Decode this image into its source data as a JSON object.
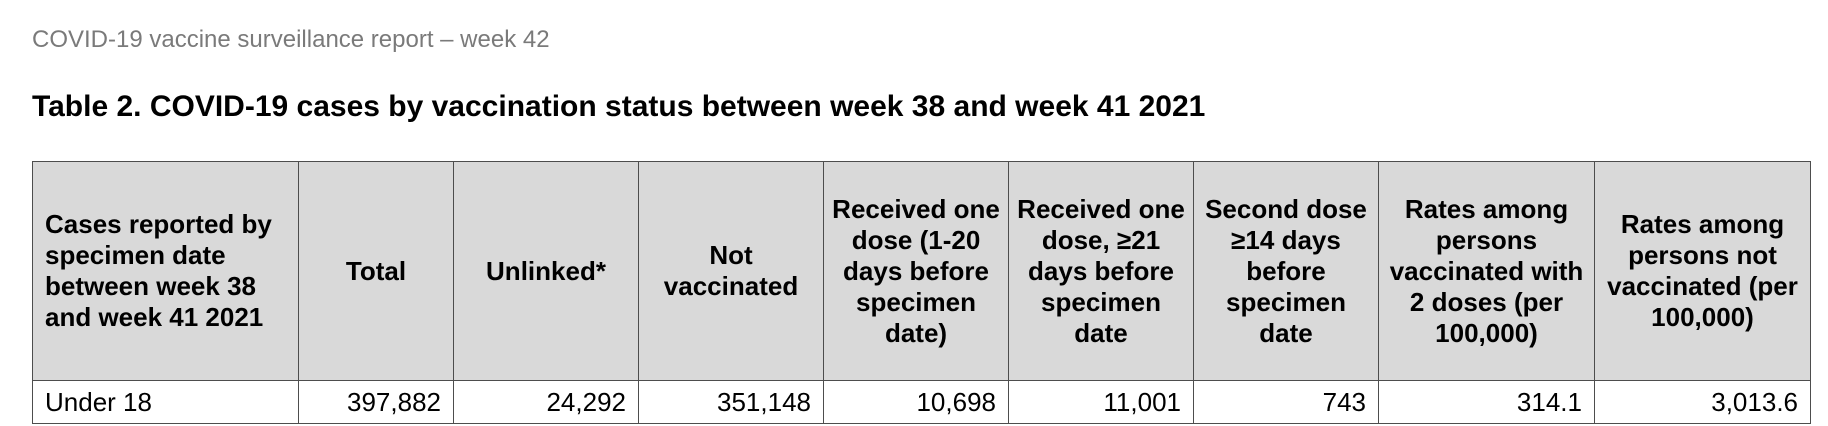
{
  "header": {
    "running_title": "COVID-19 vaccine surveillance report – week 42"
  },
  "table": {
    "title": "Table 2. COVID-19 cases by vaccination status between week 38 and week 41 2021",
    "columns": [
      "Cases reported by specimen date between week 38 and week 41 2021",
      "Total",
      "Unlinked*",
      "Not vaccinated",
      "Received one dose (1-20 days before specimen date)",
      "Received one dose, ≥21 days before specimen date",
      "Second dose ≥14 days before specimen date",
      "Rates among persons vaccinated with 2 doses (per 100,000)",
      "Rates among persons not vaccinated (per 100,000)"
    ],
    "rows": [
      [
        "Under 18",
        "397,882",
        "24,292",
        "351,148",
        "10,698",
        "11,001",
        "743",
        "314.1",
        "3,013.6"
      ]
    ]
  }
}
